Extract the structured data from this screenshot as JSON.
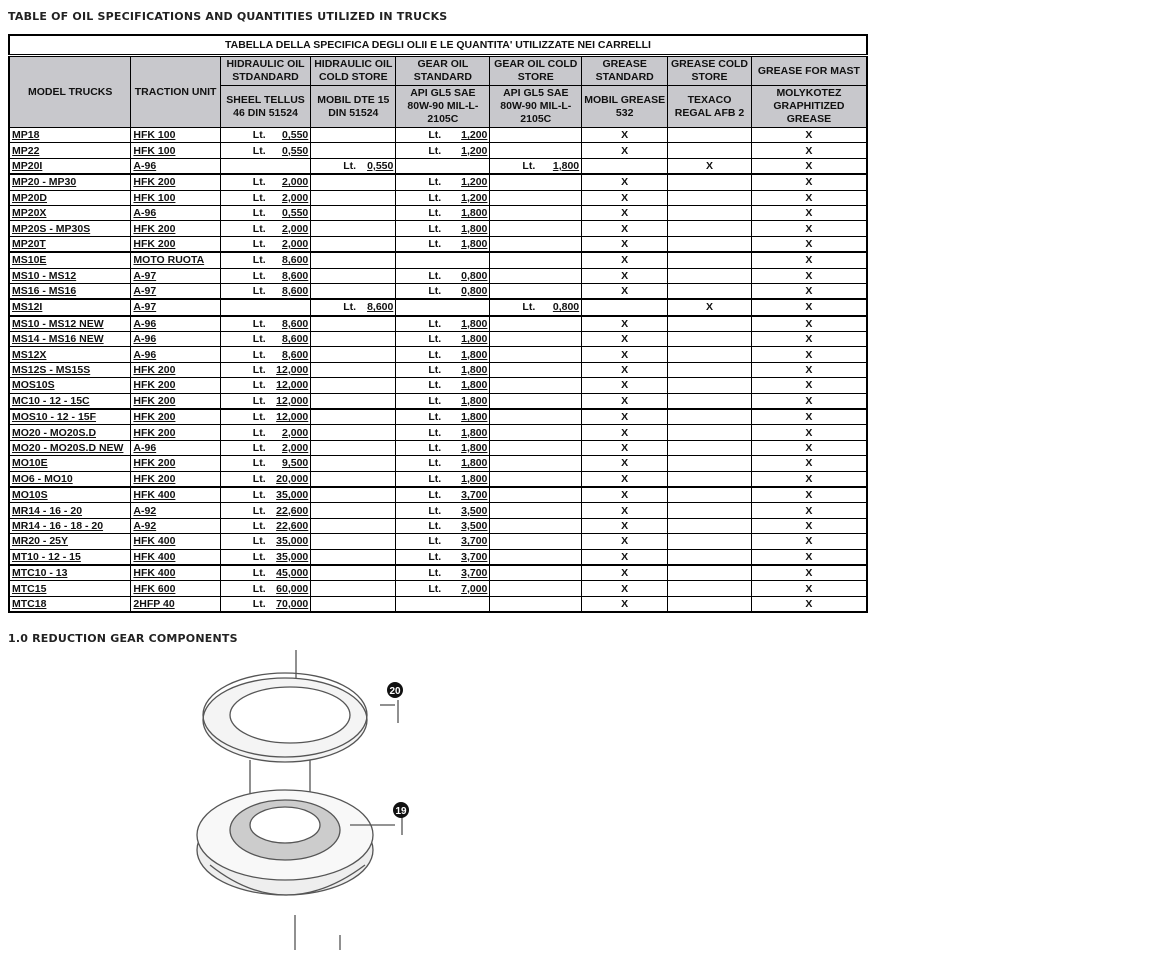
{
  "heading": "TABLE OF OIL SPECIFICATIONS AND QUANTITIES UTILIZED IN TRUCKS",
  "table": {
    "title": "TABELLA DELLA SPECIFICA DEGLI OLII E LE QUANTITA' UTILIZZATE NEI CARRELLI",
    "col_model": "MODEL TRUCKS",
    "col_traction": "TRACTION UNIT",
    "groups": [
      "HIDRAULIC OIL STDANDARD",
      "HIDRAULIC OIL COLD STORE",
      "GEAR OIL STANDARD",
      "GEAR OIL COLD STORE",
      "GREASE STANDARD",
      "GREASE COLD STORE",
      "GREASE FOR MAST"
    ],
    "products": [
      "SHEEL TELLUS 46 DIN 51524",
      "MOBIL DTE 15 DIN 51524",
      "API GL5 SAE 80W-90 MIL-L-2105C",
      "API GL5 SAE 80W-90 MIL-L-2105C",
      "MOBIL GREASE 532",
      "TEXACO REGAL AFB 2",
      "MOLYKOTEZ GRAPHITIZED GREASE"
    ],
    "unit": "Lt.",
    "mark": "X",
    "rows": [
      [
        "MP18",
        "HFK 100",
        "0,550",
        "",
        "1,200",
        "",
        "X",
        "",
        "X"
      ],
      [
        "MP22",
        "HFK 100",
        "0,550",
        "",
        "1,200",
        "",
        "X",
        "",
        "X"
      ],
      [
        "MP20I",
        "A-96",
        "",
        "0,550",
        "",
        "1,800",
        "",
        "X",
        "X"
      ],
      [
        "MP20 - MP30",
        "HFK 200",
        "2,000",
        "",
        "1,200",
        "",
        "X",
        "",
        "X"
      ],
      [
        "MP20D",
        "HFK 100",
        "2,000",
        "",
        "1,200",
        "",
        "X",
        "",
        "X"
      ],
      [
        "MP20X",
        "A-96",
        "0,550",
        "",
        "1,800",
        "",
        "X",
        "",
        "X"
      ],
      [
        "MP20S - MP30S",
        "HFK 200",
        "2,000",
        "",
        "1,800",
        "",
        "X",
        "",
        "X"
      ],
      [
        "MP20T",
        "HFK 200",
        "2,000",
        "",
        "1,800",
        "",
        "X",
        "",
        "X"
      ],
      [
        "MS10E",
        "MOTO RUOTA",
        "8,600",
        "",
        "",
        "",
        "X",
        "",
        "X"
      ],
      [
        "MS10 - MS12",
        "A-97",
        "8,600",
        "",
        "0,800",
        "",
        "X",
        "",
        "X"
      ],
      [
        "MS16 - MS16",
        "A-97",
        "8,600",
        "",
        "0,800",
        "",
        "X",
        "",
        "X"
      ],
      [
        "MS12I",
        "A-97",
        "",
        "8,600",
        "",
        "0,800",
        "",
        "X",
        "X"
      ],
      [
        "MS10 - MS12 NEW",
        "A-96",
        "8,600",
        "",
        "1,800",
        "",
        "X",
        "",
        "X"
      ],
      [
        "MS14 - MS16 NEW",
        "A-96",
        "8,600",
        "",
        "1,800",
        "",
        "X",
        "",
        "X"
      ],
      [
        "MS12X",
        "A-96",
        "8,600",
        "",
        "1,800",
        "",
        "X",
        "",
        "X"
      ],
      [
        "MS12S - MS15S",
        "HFK 200",
        "12,000",
        "",
        "1,800",
        "",
        "X",
        "",
        "X"
      ],
      [
        "MOS10S",
        "HFK 200",
        "12,000",
        "",
        "1,800",
        "",
        "X",
        "",
        "X"
      ],
      [
        "MC10 - 12 - 15C",
        "HFK 200",
        "12,000",
        "",
        "1,800",
        "",
        "X",
        "",
        "X"
      ],
      [
        "MOS10 - 12 - 15F",
        "HFK 200",
        "12,000",
        "",
        "1,800",
        "",
        "X",
        "",
        "X"
      ],
      [
        "MO20 - MO20S.D",
        "HFK 200",
        "2,000",
        "",
        "1,800",
        "",
        "X",
        "",
        "X"
      ],
      [
        "MO20 - MO20S.D NEW",
        "A-96",
        "2,000",
        "",
        "1,800",
        "",
        "X",
        "",
        "X"
      ],
      [
        "MO10E",
        "HFK 200",
        "9,500",
        "",
        "1,800",
        "",
        "X",
        "",
        "X"
      ],
      [
        "MO6 - MO10",
        "HFK 200",
        "20,000",
        "",
        "1,800",
        "",
        "X",
        "",
        "X"
      ],
      [
        "MO10S",
        "HFK 400",
        "35,000",
        "",
        "3,700",
        "",
        "X",
        "",
        "X"
      ],
      [
        "MR14 - 16 - 20",
        "A-92",
        "22,600",
        "",
        "3,500",
        "",
        "X",
        "",
        "X"
      ],
      [
        "MR14 - 16 - 18 - 20",
        "A-92",
        "22,600",
        "",
        "3,500",
        "",
        "X",
        "",
        "X"
      ],
      [
        "MR20 - 25Y",
        "HFK 400",
        "35,000",
        "",
        "3,700",
        "",
        "X",
        "",
        "X"
      ],
      [
        "MT10 - 12 - 15",
        "HFK 400",
        "35,000",
        "",
        "3,700",
        "",
        "X",
        "",
        "X"
      ],
      [
        "MTC10 - 13",
        "HFK 400",
        "45,000",
        "",
        "3,700",
        "",
        "X",
        "",
        "X"
      ],
      [
        "MTC15",
        "HFK 600",
        "60,000",
        "",
        "7,000",
        "",
        "X",
        "",
        "X"
      ],
      [
        "MTC18",
        "2HFP 40",
        "70,000",
        "",
        "",
        "",
        "X",
        "",
        "X"
      ]
    ]
  },
  "section": "1.0 REDUCTION GEAR COMPONENTS",
  "callouts": [
    "20",
    "19"
  ]
}
